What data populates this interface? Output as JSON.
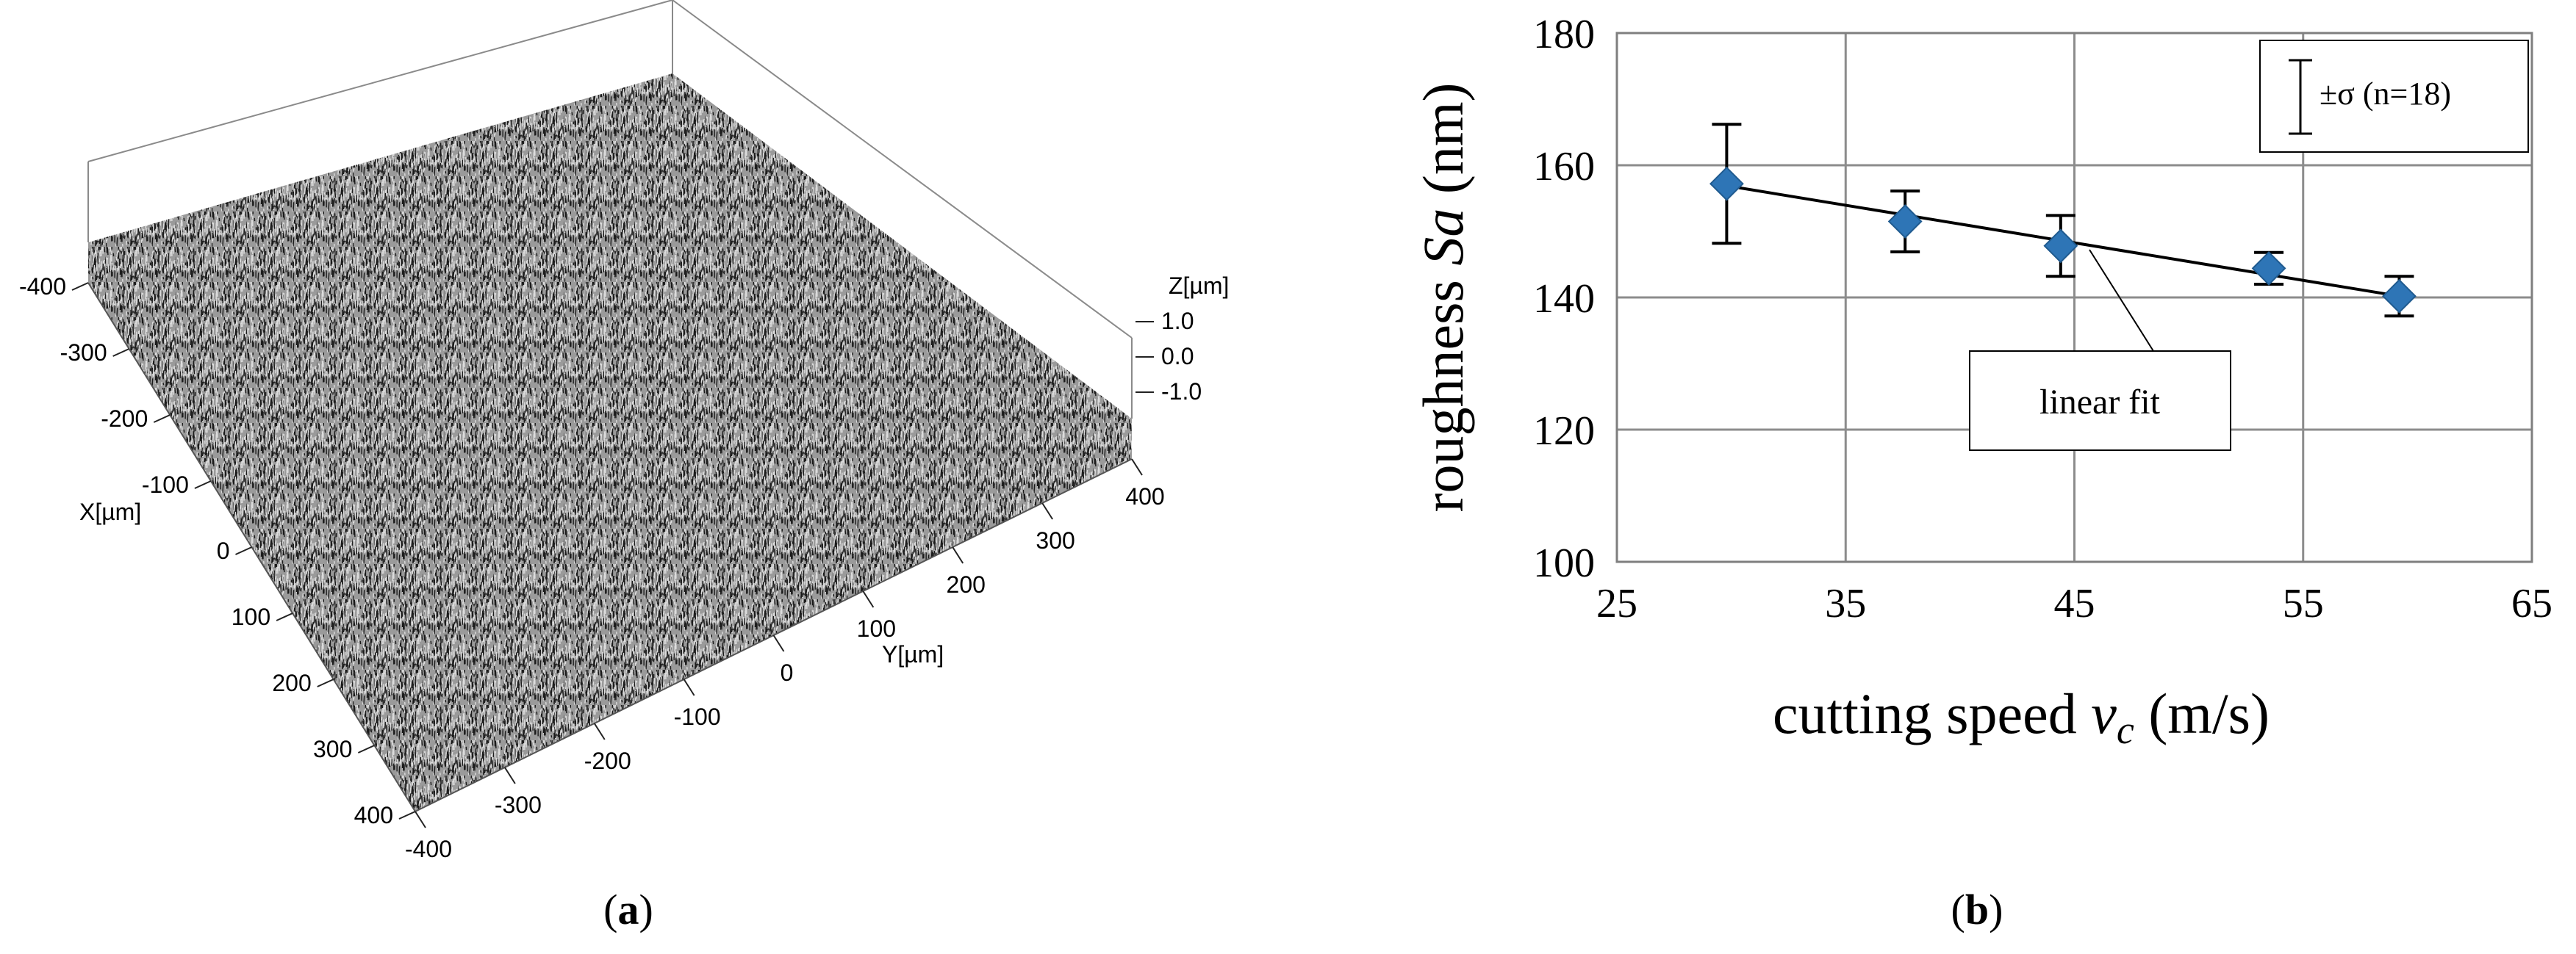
{
  "panel_a": {
    "caption": "a",
    "x_axis_label": "X[µm]",
    "y_axis_label": "Y[µm]",
    "z_axis_label": "Z[µm]",
    "x_ticks": [
      "-400",
      "-300",
      "-200",
      "-100",
      "0",
      "100",
      "200",
      "300",
      "400"
    ],
    "y_ticks": [
      "-400",
      "-300",
      "-200",
      "-100",
      "0",
      "100",
      "200",
      "300",
      "400"
    ],
    "z_ticks": [
      "1.0",
      "0.0",
      "-1.0"
    ],
    "colors": {
      "surface_dark": "#1a1a1a",
      "surface_light": "#dcdcdc",
      "box": "#8a8a8a"
    }
  },
  "panel_b": {
    "caption": "b",
    "legend_label": "±σ (n=18)",
    "annotation": "linear fit"
  },
  "chart_data": {
    "type": "scatter",
    "xlabel_prefix": "cutting speed ",
    "xlabel_var": "v",
    "xlabel_sub": "c",
    "xlabel_suffix": " (m/s)",
    "ylabel_prefix": "roughness ",
    "ylabel_var": "Sa",
    "ylabel_suffix": " (nm)",
    "xlim": [
      25,
      65
    ],
    "ylim": [
      100,
      180
    ],
    "x_ticks": [
      25,
      35,
      45,
      55,
      65
    ],
    "y_ticks": [
      100,
      120,
      140,
      160,
      180
    ],
    "grid": true,
    "legend_position": "top-right",
    "marker_color": "#2e75b6",
    "x": [
      29.8,
      37.6,
      44.4,
      53.5,
      59.2
    ],
    "y": [
      157.2,
      151.5,
      147.8,
      144.4,
      140.2
    ],
    "error": [
      9.0,
      4.6,
      4.6,
      2.4,
      3.0
    ],
    "fit_line": {
      "x": [
        29.8,
        59.2
      ],
      "y": [
        156.9,
        140.2
      ]
    }
  }
}
